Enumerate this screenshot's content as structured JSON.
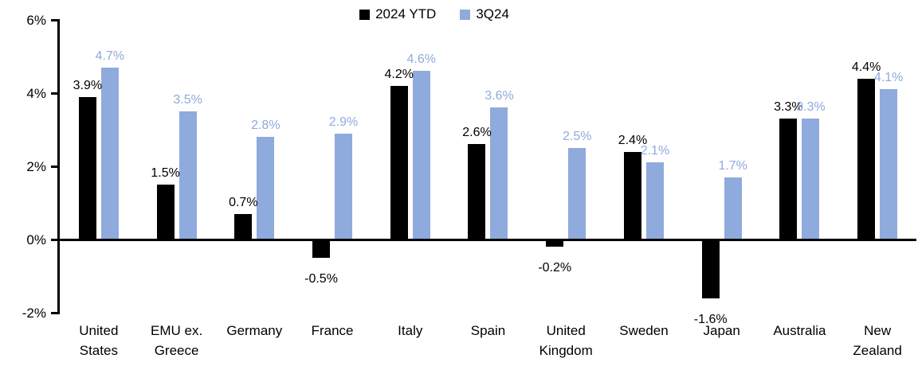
{
  "chart_data": {
    "type": "bar",
    "title": "",
    "xlabel": "",
    "ylabel": "",
    "categories": [
      "United States",
      "EMU ex. Greece",
      "Germany",
      "France",
      "Italy",
      "Spain",
      "United Kingdom",
      "Sweden",
      "Japan",
      "Australia",
      "New Zealand"
    ],
    "series": [
      {
        "name": "2024 YTD",
        "color": "#000000",
        "values": [
          3.9,
          1.5,
          0.7,
          -0.5,
          4.2,
          2.6,
          -0.2,
          2.4,
          -1.6,
          3.3,
          4.4
        ],
        "value_labels": [
          "3.9%",
          "1.5%",
          "0.7%",
          "-0.5%",
          "4.2%",
          "2.6%",
          "-0.2%",
          "2.4%",
          "-1.6%",
          "3.3%",
          "4.4%"
        ]
      },
      {
        "name": "3Q24",
        "color": "#8FAADC",
        "values": [
          4.7,
          3.5,
          2.8,
          2.9,
          4.6,
          3.6,
          2.5,
          2.1,
          1.7,
          3.3,
          4.1
        ],
        "value_labels": [
          "4.7%",
          "3.5%",
          "2.8%",
          "2.9%",
          "4.6%",
          "3.6%",
          "2.5%",
          "2.1%",
          "1.7%",
          "3.3%",
          "4.1%"
        ]
      }
    ],
    "ylim": [
      -2,
      6
    ],
    "ytick_step": 2,
    "yticks": [
      "6%",
      "4%",
      "2%",
      "0%",
      "-2%"
    ],
    "ytick_values": [
      6,
      4,
      2,
      0,
      -2
    ],
    "grid": false,
    "legend_position": "top-center",
    "value_labels_shown": true,
    "axis_color": "#000000",
    "background_color": "#ffffff"
  }
}
